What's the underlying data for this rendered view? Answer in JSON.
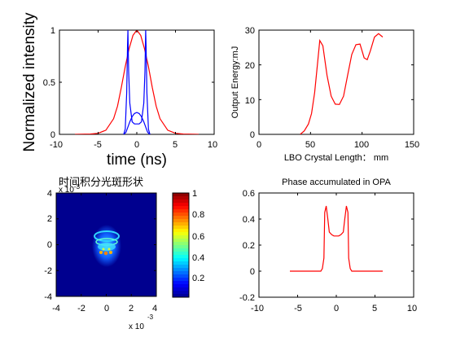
{
  "figure": {
    "panel_top_left": {
      "ylabel": "Normalized intensity",
      "xlabel": "time (ns)",
      "xticks": [
        "-10",
        "-5",
        "0",
        "5",
        "10"
      ],
      "yticks": [
        "0",
        "0.5",
        "1"
      ]
    },
    "panel_top_right": {
      "ylabel": "Output Energy:mJ",
      "xlabel": "LBO Crystal Length： mm",
      "xticks": [
        "0",
        "50",
        "100",
        "150"
      ],
      "yticks": [
        "0",
        "10",
        "20",
        "30"
      ]
    },
    "panel_bottom_left": {
      "title": "时间积分光斑形状",
      "xticks": [
        "-4",
        "-2",
        "0",
        "2",
        "4"
      ],
      "yticks": [
        "-4",
        "-2",
        "0",
        "2",
        "4"
      ],
      "x_exponent": "x 10",
      "x_exponent_power": "-3",
      "y_exponent": "x 10",
      "y_exponent_power": "-3",
      "colorbar_ticks": [
        "0.2",
        "0.4",
        "0.6",
        "0.8",
        "1"
      ]
    },
    "panel_bottom_right": {
      "title": "Phase accumulated in OPA",
      "xticks": [
        "-10",
        "-5",
        "0",
        "5",
        "10"
      ],
      "yticks": [
        "-0.2",
        "0",
        "0.2",
        "0.4",
        "0.6"
      ]
    }
  },
  "chart_data": [
    {
      "type": "line",
      "xlim": [
        -10,
        10
      ],
      "ylim": [
        0,
        1
      ],
      "series": [
        {
          "color": "#ff0000",
          "x": [
            -8,
            -6,
            -5,
            -4,
            -3,
            -2.5,
            -2,
            -1.5,
            -1,
            -0.5,
            0,
            0.5,
            1,
            1.5,
            2,
            2.5,
            3,
            4,
            5,
            6,
            8
          ],
          "y": [
            0.0,
            0.003,
            0.01,
            0.04,
            0.15,
            0.27,
            0.45,
            0.65,
            0.82,
            0.95,
            1.0,
            0.95,
            0.82,
            0.65,
            0.45,
            0.27,
            0.15,
            0.04,
            0.01,
            0.003,
            0.0
          ]
        },
        {
          "color": "#0000ff",
          "x": [
            -1.7,
            -1.5,
            -1.3,
            -1.2,
            -1.15,
            -1.05,
            -0.9,
            -0.6,
            -0.3,
            0,
            0.3,
            0.6,
            0.9,
            1.05,
            1.15,
            1.2,
            1.3,
            1.5,
            1.7
          ],
          "y": [
            0.0,
            0.05,
            0.4,
            0.85,
            1.0,
            0.6,
            0.3,
            0.12,
            0.1,
            0.1,
            0.1,
            0.12,
            0.3,
            0.6,
            1.0,
            0.85,
            0.4,
            0.05,
            0.0
          ]
        },
        {
          "color": "#0000ff",
          "x": [
            -1.7,
            -1.4,
            -1.2,
            -0.9,
            -0.6,
            -0.3,
            0,
            0.3,
            0.6,
            0.9,
            1.2,
            1.4,
            1.7
          ],
          "y": [
            0.0,
            0.02,
            0.06,
            0.12,
            0.17,
            0.2,
            0.21,
            0.2,
            0.17,
            0.12,
            0.06,
            0.02,
            0.0
          ]
        }
      ]
    },
    {
      "type": "line",
      "xlim": [
        0,
        150
      ],
      "ylim": [
        0,
        30
      ],
      "series": [
        {
          "color": "#ff0000",
          "x": [
            40,
            44,
            48,
            51,
            54,
            57,
            59,
            62,
            66,
            70,
            74,
            78,
            82,
            86,
            90,
            94,
            98,
            102,
            105,
            108,
            112,
            116,
            120
          ],
          "y": [
            0,
            1,
            3,
            6,
            12,
            21,
            27,
            25.5,
            17,
            11,
            8.7,
            8.6,
            11,
            17,
            23,
            25.8,
            26,
            22,
            21.5,
            24,
            28,
            29,
            28
          ]
        }
      ]
    },
    {
      "type": "heatmap",
      "xlim": [
        -4,
        4
      ],
      "ylim": [
        -4,
        4
      ],
      "colorbar_range": [
        0.05,
        1
      ]
    },
    {
      "type": "line",
      "title": "Phase accumulated in OPA",
      "xlim": [
        -10,
        10
      ],
      "ylim": [
        -0.2,
        0.6
      ],
      "series": [
        {
          "color": "#ff0000",
          "x": [
            -6,
            -2,
            -1.8,
            -1.6,
            -1.5,
            -1.3,
            -1.1,
            -0.9,
            -0.6,
            -0.3,
            0,
            0.3,
            0.6,
            0.9,
            1.1,
            1.3,
            1.5,
            1.6,
            1.8,
            2,
            6
          ],
          "y": [
            0,
            0,
            0.02,
            0.1,
            0.45,
            0.5,
            0.4,
            0.3,
            0.28,
            0.27,
            0.27,
            0.27,
            0.28,
            0.3,
            0.4,
            0.5,
            0.45,
            0.1,
            0.02,
            0,
            0
          ]
        }
      ]
    }
  ]
}
